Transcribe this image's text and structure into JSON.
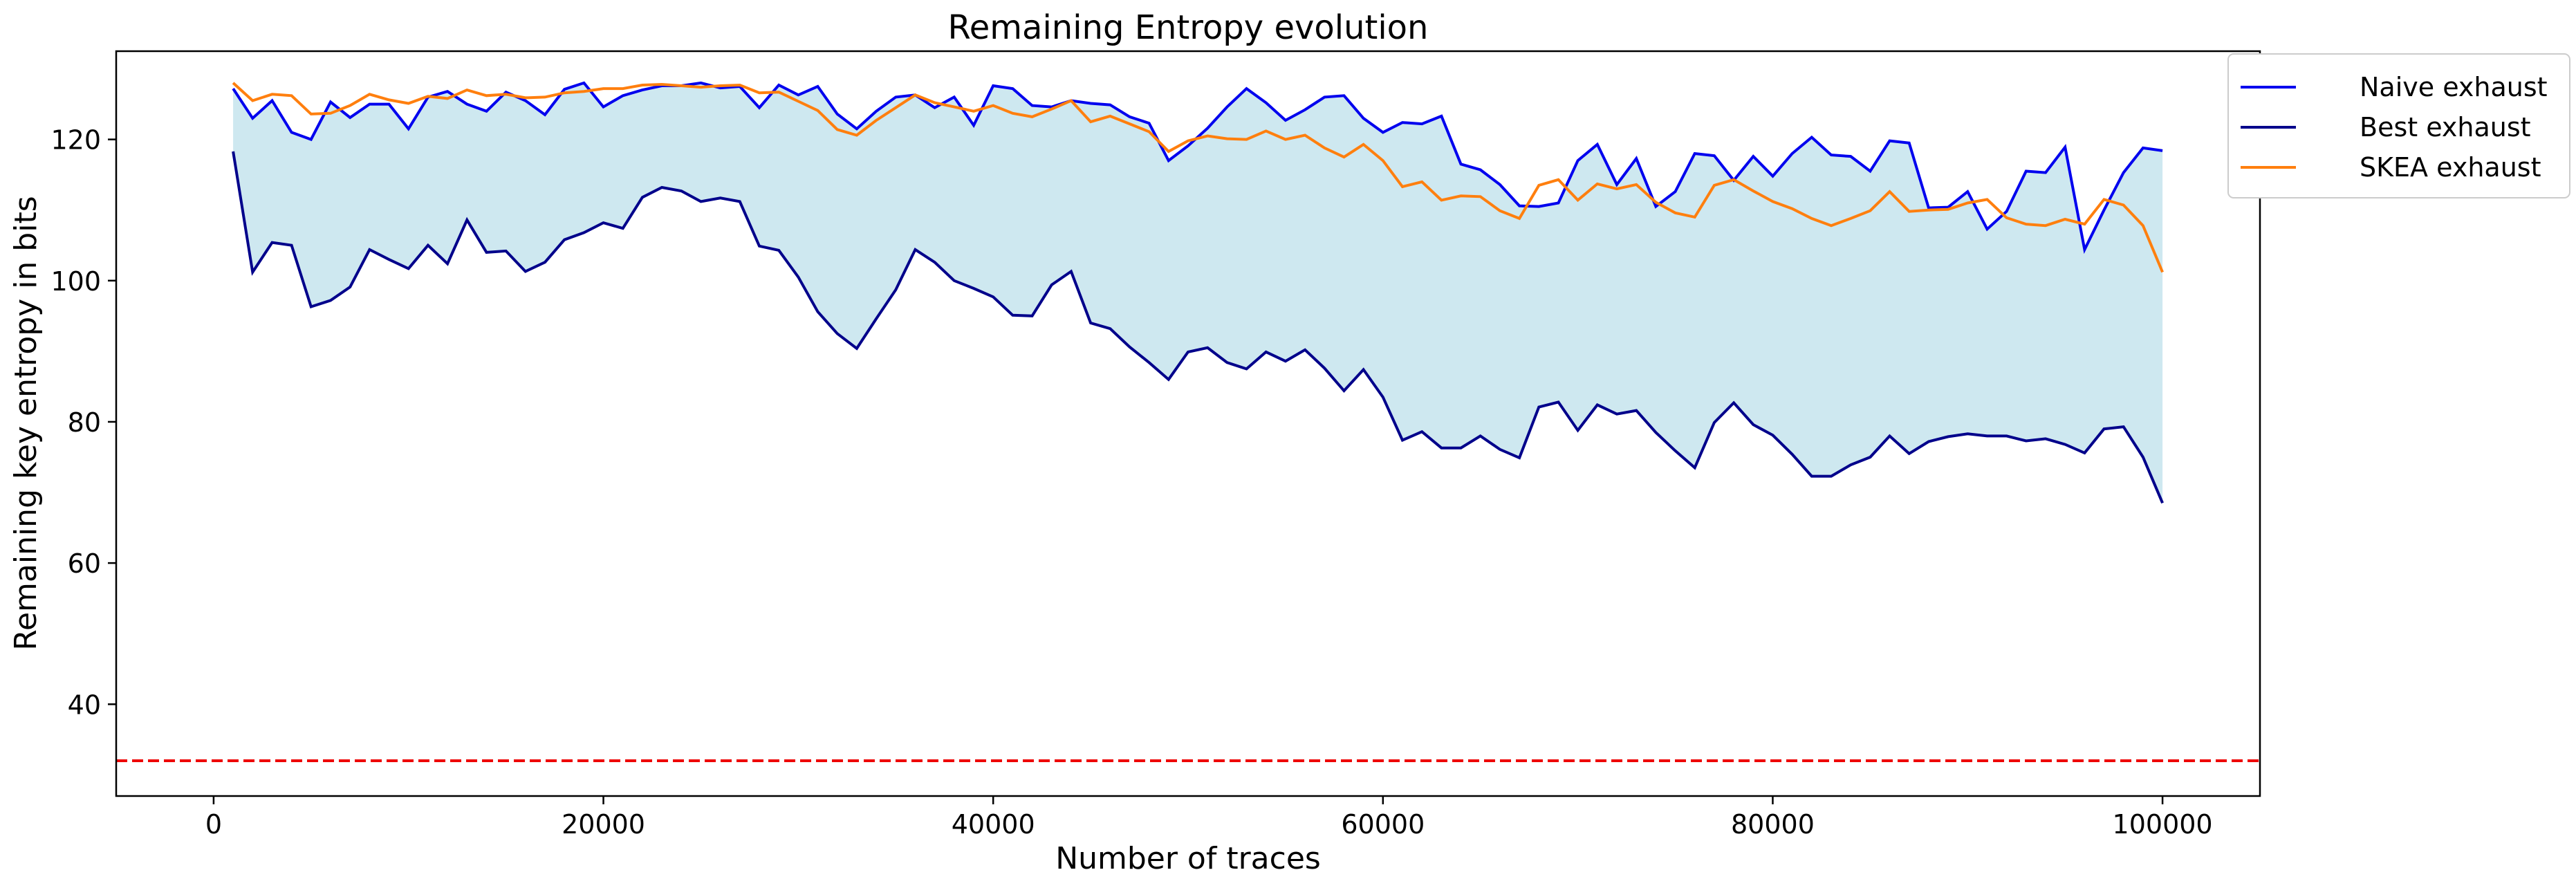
{
  "chart_data": {
    "type": "line",
    "title": "Remaining Entropy evolution",
    "xlabel": "Number of traces",
    "ylabel": "Remaining key entropy in bits",
    "xlim": [
      -5000,
      105000
    ],
    "ylim": [
      27,
      132.5
    ],
    "xticks": [
      0,
      20000,
      40000,
      60000,
      80000,
      100000
    ],
    "xtick_labels": [
      "0",
      "20000",
      "40000",
      "60000",
      "80000",
      "100000"
    ],
    "yticks": [
      40,
      60,
      80,
      100,
      120
    ],
    "ytick_labels": [
      "40",
      "60",
      "80",
      "100",
      "120"
    ],
    "legend_position": "outside-top-right",
    "x_start": 1000,
    "x_step": 1000,
    "series": [
      {
        "name": "Naive exhaust",
        "color": "#0000ee",
        "values": [
          127.2,
          123,
          125.5,
          121,
          120,
          125.3,
          123.1,
          125,
          125,
          121.5,
          126,
          126.8,
          125,
          124,
          126.7,
          125.5,
          123.5,
          127.1,
          128,
          124.6,
          126.2,
          127,
          127.6,
          127.6,
          128,
          127.3,
          127.5,
          124.5,
          127.7,
          126.3,
          127.5,
          123.6,
          121.5,
          124,
          126,
          126.3,
          124.5,
          126,
          122,
          127.6,
          127.2,
          124.8,
          124.6,
          125.5,
          125.1,
          124.9,
          123.2,
          122.3,
          117,
          119.1,
          121.6,
          124.6,
          127.2,
          125.2,
          122.7,
          124.2,
          126,
          126.2,
          123,
          121,
          122.4,
          122.2,
          123.3,
          116.5,
          115.7,
          113.6,
          110.6,
          110.5,
          111,
          117,
          119.3,
          113.6,
          117.3,
          110.5,
          112.6,
          118,
          117.7,
          114.2,
          117.6,
          114.8,
          118,
          120.3,
          117.8,
          117.6,
          115.5,
          119.8,
          119.5,
          110.3,
          110.4,
          112.6,
          107.3,
          109.8,
          115.5,
          115.3,
          118.9,
          104.4,
          110,
          115.3,
          118.8,
          118.4
        ]
      },
      {
        "name": "Best exhaust",
        "color": "#00008b",
        "values": [
          118.3,
          101.2,
          105.4,
          105,
          96.3,
          97.2,
          99.1,
          104.4,
          103,
          101.7,
          105,
          102.4,
          108.6,
          104,
          104.2,
          101.3,
          102.6,
          105.8,
          106.8,
          108.2,
          107.4,
          111.8,
          113.2,
          112.7,
          111.2,
          111.7,
          111.2,
          104.9,
          104.3,
          100.5,
          95.6,
          92.5,
          90.4,
          94.6,
          98.7,
          104.4,
          102.6,
          100,
          98.9,
          97.7,
          95.1,
          95,
          99.4,
          101.3,
          94,
          93.2,
          90.6,
          88.4,
          86,
          89.9,
          90.5,
          88.4,
          87.5,
          89.9,
          88.6,
          90.2,
          87.6,
          84.4,
          87.4,
          83.5,
          77.4,
          78.6,
          76.3,
          76.3,
          78,
          76.1,
          74.9,
          82.1,
          82.8,
          78.8,
          82.4,
          81.1,
          81.6,
          78.5,
          75.9,
          73.5,
          79.9,
          82.7,
          79.6,
          78.1,
          75.4,
          72.3,
          72.3,
          73.9,
          75,
          78,
          75.5,
          77.2,
          77.9,
          78.3,
          78,
          78,
          77.3,
          77.6,
          76.8,
          75.6,
          79,
          79.3,
          75,
          68.5
        ]
      },
      {
        "name": "SKEA exhaust",
        "color": "#ff7f0e",
        "values": [
          128,
          125.5,
          126.4,
          126.2,
          123.6,
          123.7,
          124.8,
          126.4,
          125.6,
          125.1,
          126.1,
          125.8,
          127,
          126.2,
          126.4,
          125.9,
          126,
          126.6,
          126.8,
          127.2,
          127.2,
          127.7,
          127.8,
          127.6,
          127.4,
          127.6,
          127.7,
          126.6,
          126.7,
          125.4,
          124.1,
          121.4,
          120.6,
          122.7,
          124.5,
          126.3,
          125.2,
          124.6,
          124,
          124.8,
          123.7,
          123.2,
          124.3,
          125.5,
          122.5,
          123.3,
          122.2,
          121.1,
          118.3,
          119.8,
          120.5,
          120.1,
          120,
          121.2,
          120,
          120.6,
          118.8,
          117.5,
          119.3,
          117,
          113.3,
          114,
          111.4,
          112,
          111.9,
          109.9,
          108.8,
          113.5,
          114.3,
          111.4,
          113.7,
          113,
          113.6,
          111.1,
          109.6,
          109,
          113.5,
          114.3,
          112.7,
          111.2,
          110.2,
          108.8,
          107.8,
          108.8,
          109.9,
          112.6,
          109.8,
          110,
          110.1,
          111,
          111.5,
          108.9,
          108,
          107.8,
          108.7,
          108,
          111.5,
          110.7,
          107.8,
          101.2
        ]
      }
    ],
    "threshold": {
      "y": 32,
      "color": "#ee0000",
      "style": "dashed"
    },
    "fill_between": {
      "lower_series": "Best exhaust",
      "upper_series": "Naive exhaust",
      "color": "#add8e6",
      "alpha": 0.6
    }
  }
}
